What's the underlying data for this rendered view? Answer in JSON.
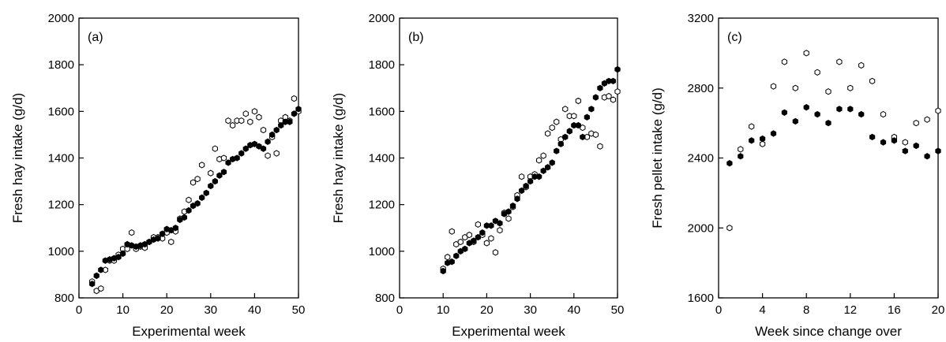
{
  "chart_data": [
    {
      "type": "scatter",
      "panel_label": "(a)",
      "xlabel": "Experimental week",
      "ylabel": "Fresh hay intake (g/d)",
      "xlim": [
        0,
        50
      ],
      "ylim": [
        800,
        2000
      ],
      "xticks": [
        0,
        10,
        20,
        30,
        40,
        50
      ],
      "yticks": [
        800,
        1000,
        1200,
        1400,
        1600,
        1800,
        2000
      ],
      "grid": false,
      "series": [
        {
          "marker": "open",
          "points": [
            [
              3,
              870
            ],
            [
              4,
              830
            ],
            [
              5,
              840
            ],
            [
              6,
              920
            ],
            [
              7,
              960
            ],
            [
              8,
              960
            ],
            [
              9,
              985
            ],
            [
              10,
              1010
            ],
            [
              11,
              1010
            ],
            [
              12,
              1080
            ],
            [
              13,
              1010
            ],
            [
              14,
              1020
            ],
            [
              15,
              1015
            ],
            [
              16,
              1040
            ],
            [
              17,
              1060
            ],
            [
              18,
              1060
            ],
            [
              19,
              1055
            ],
            [
              20,
              1080
            ],
            [
              21,
              1040
            ],
            [
              22,
              1085
            ],
            [
              23,
              1140
            ],
            [
              24,
              1170
            ],
            [
              25,
              1220
            ],
            [
              26,
              1295
            ],
            [
              27,
              1310
            ],
            [
              28,
              1370
            ],
            [
              30,
              1335
            ],
            [
              31,
              1440
            ],
            [
              32,
              1395
            ],
            [
              33,
              1400
            ],
            [
              34,
              1560
            ],
            [
              35,
              1540
            ],
            [
              36,
              1560
            ],
            [
              37,
              1560
            ],
            [
              38,
              1590
            ],
            [
              39,
              1555
            ],
            [
              40,
              1600
            ],
            [
              41,
              1575
            ],
            [
              42,
              1520
            ],
            [
              43,
              1410
            ],
            [
              44,
              1490
            ],
            [
              45,
              1420
            ],
            [
              46,
              1560
            ],
            [
              47,
              1575
            ],
            [
              48,
              1560
            ],
            [
              49,
              1655
            ],
            [
              50,
              1600
            ]
          ]
        },
        {
          "marker": "filled",
          "points": [
            [
              3,
              860
            ],
            [
              4,
              895
            ],
            [
              5,
              920
            ],
            [
              6,
              960
            ],
            [
              7,
              965
            ],
            [
              8,
              970
            ],
            [
              9,
              975
            ],
            [
              10,
              990
            ],
            [
              11,
              1030
            ],
            [
              12,
              1025
            ],
            [
              13,
              1020
            ],
            [
              14,
              1025
            ],
            [
              15,
              1030
            ],
            [
              16,
              1040
            ],
            [
              17,
              1050
            ],
            [
              18,
              1055
            ],
            [
              19,
              1075
            ],
            [
              20,
              1095
            ],
            [
              21,
              1090
            ],
            [
              22,
              1100
            ],
            [
              23,
              1135
            ],
            [
              24,
              1145
            ],
            [
              25,
              1175
            ],
            [
              26,
              1195
            ],
            [
              27,
              1205
            ],
            [
              28,
              1230
            ],
            [
              29,
              1250
            ],
            [
              30,
              1280
            ],
            [
              31,
              1300
            ],
            [
              32,
              1325
            ],
            [
              33,
              1340
            ],
            [
              34,
              1380
            ],
            [
              35,
              1395
            ],
            [
              36,
              1400
            ],
            [
              37,
              1420
            ],
            [
              38,
              1440
            ],
            [
              39,
              1455
            ],
            [
              40,
              1460
            ],
            [
              41,
              1450
            ],
            [
              42,
              1440
            ],
            [
              43,
              1470
            ],
            [
              44,
              1500
            ],
            [
              45,
              1520
            ],
            [
              46,
              1540
            ],
            [
              47,
              1555
            ],
            [
              48,
              1555
            ],
            [
              49,
              1590
            ],
            [
              50,
              1610
            ]
          ]
        }
      ]
    },
    {
      "type": "scatter",
      "panel_label": "(b)",
      "xlabel": "Experimental week",
      "ylabel": "Fresh hay intake (g/d)",
      "xlim": [
        0,
        50
      ],
      "ylim": [
        800,
        2000
      ],
      "xticks": [
        0,
        10,
        20,
        30,
        40,
        50
      ],
      "yticks": [
        800,
        1000,
        1200,
        1400,
        1600,
        1800,
        2000
      ],
      "grid": false,
      "series": [
        {
          "marker": "open",
          "points": [
            [
              10,
              925
            ],
            [
              11,
              975
            ],
            [
              12,
              1085
            ],
            [
              13,
              1030
            ],
            [
              14,
              1040
            ],
            [
              15,
              1060
            ],
            [
              16,
              1070
            ],
            [
              17,
              1040
            ],
            [
              18,
              1115
            ],
            [
              19,
              1070
            ],
            [
              20,
              1035
            ],
            [
              21,
              1055
            ],
            [
              22,
              995
            ],
            [
              23,
              1090
            ],
            [
              24,
              1165
            ],
            [
              25,
              1140
            ],
            [
              26,
              1190
            ],
            [
              27,
              1240
            ],
            [
              28,
              1320
            ],
            [
              29,
              1275
            ],
            [
              30,
              1320
            ],
            [
              31,
              1330
            ],
            [
              32,
              1390
            ],
            [
              33,
              1410
            ],
            [
              34,
              1505
            ],
            [
              35,
              1530
            ],
            [
              36,
              1555
            ],
            [
              37,
              1480
            ],
            [
              38,
              1610
            ],
            [
              39,
              1580
            ],
            [
              40,
              1580
            ],
            [
              41,
              1645
            ],
            [
              42,
              1530
            ],
            [
              43,
              1490
            ],
            [
              44,
              1505
            ],
            [
              45,
              1500
            ],
            [
              46,
              1450
            ],
            [
              47,
              1660
            ],
            [
              48,
              1665
            ],
            [
              49,
              1650
            ],
            [
              50,
              1685
            ]
          ]
        },
        {
          "marker": "filled",
          "points": [
            [
              10,
              915
            ],
            [
              11,
              950
            ],
            [
              12,
              955
            ],
            [
              13,
              980
            ],
            [
              14,
              1000
            ],
            [
              15,
              1010
            ],
            [
              16,
              1035
            ],
            [
              17,
              1045
            ],
            [
              18,
              1060
            ],
            [
              19,
              1080
            ],
            [
              20,
              1110
            ],
            [
              21,
              1110
            ],
            [
              22,
              1130
            ],
            [
              23,
              1120
            ],
            [
              24,
              1160
            ],
            [
              25,
              1170
            ],
            [
              26,
              1195
            ],
            [
              27,
              1225
            ],
            [
              28,
              1260
            ],
            [
              29,
              1280
            ],
            [
              30,
              1300
            ],
            [
              31,
              1320
            ],
            [
              32,
              1320
            ],
            [
              33,
              1345
            ],
            [
              34,
              1360
            ],
            [
              35,
              1380
            ],
            [
              36,
              1430
            ],
            [
              37,
              1460
            ],
            [
              38,
              1490
            ],
            [
              39,
              1515
            ],
            [
              40,
              1540
            ],
            [
              41,
              1540
            ],
            [
              42,
              1490
            ],
            [
              43,
              1575
            ],
            [
              44,
              1610
            ],
            [
              45,
              1660
            ],
            [
              46,
              1700
            ],
            [
              47,
              1720
            ],
            [
              48,
              1730
            ],
            [
              49,
              1730
            ],
            [
              50,
              1780
            ]
          ]
        }
      ]
    },
    {
      "type": "scatter",
      "panel_label": "(c)",
      "xlabel": "Week since change over",
      "ylabel": "Fresh pellet intake (g/d)",
      "xlim": [
        0,
        20
      ],
      "ylim": [
        1600,
        3200
      ],
      "xticks": [
        0,
        4,
        8,
        12,
        16,
        20
      ],
      "yticks": [
        1600,
        2000,
        2400,
        2800,
        3200
      ],
      "grid": false,
      "series": [
        {
          "marker": "open",
          "points": [
            [
              1,
              2000
            ],
            [
              2,
              2450
            ],
            [
              3,
              2580
            ],
            [
              4,
              2480
            ],
            [
              5,
              2810
            ],
            [
              6,
              2950
            ],
            [
              7,
              2800
            ],
            [
              8,
              3000
            ],
            [
              9,
              2890
            ],
            [
              10,
              2780
            ],
            [
              11,
              2950
            ],
            [
              12,
              2800
            ],
            [
              13,
              2930
            ],
            [
              14,
              2840
            ],
            [
              15,
              2650
            ],
            [
              16,
              2520
            ],
            [
              17,
              2490
            ],
            [
              18,
              2600
            ],
            [
              19,
              2620
            ],
            [
              20,
              2670
            ]
          ]
        },
        {
          "marker": "filled",
          "points": [
            [
              1,
              2370
            ],
            [
              2,
              2410
            ],
            [
              3,
              2500
            ],
            [
              4,
              2510
            ],
            [
              5,
              2540
            ],
            [
              6,
              2660
            ],
            [
              7,
              2610
            ],
            [
              8,
              2690
            ],
            [
              9,
              2650
            ],
            [
              10,
              2600
            ],
            [
              11,
              2680
            ],
            [
              12,
              2680
            ],
            [
              13,
              2650
            ],
            [
              14,
              2520
            ],
            [
              15,
              2490
            ],
            [
              16,
              2500
            ],
            [
              17,
              2440
            ],
            [
              18,
              2470
            ],
            [
              19,
              2410
            ],
            [
              20,
              2440
            ]
          ]
        }
      ]
    }
  ]
}
